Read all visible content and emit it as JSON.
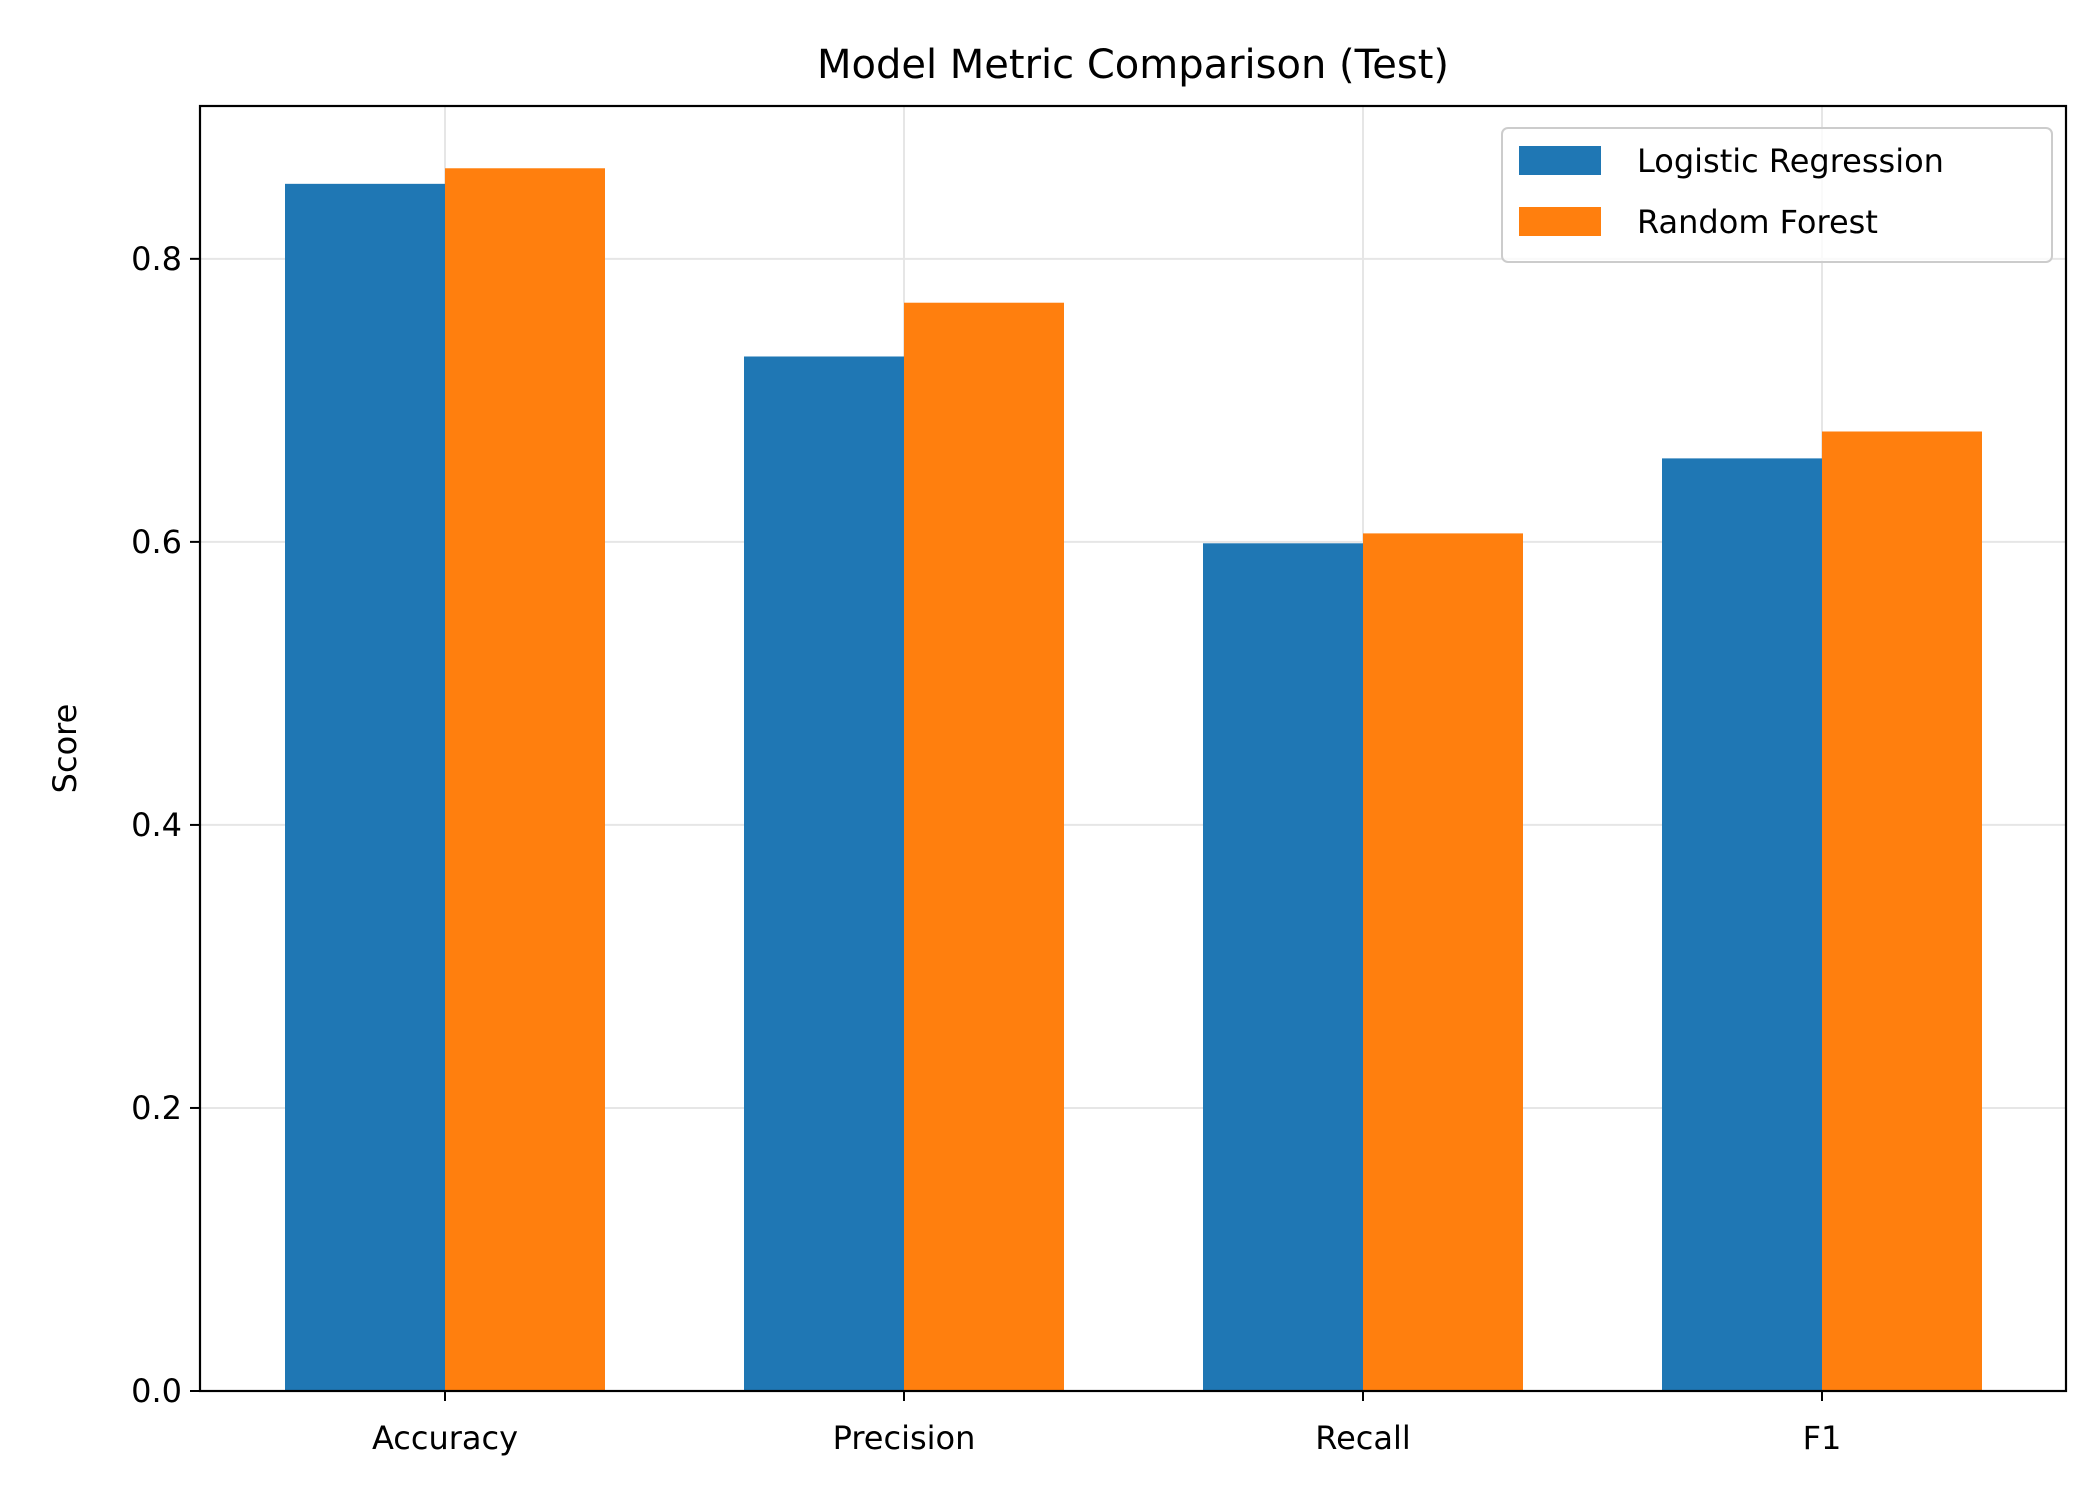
{
  "chart_data": {
    "type": "bar",
    "title": "Model Metric Comparison (Test)",
    "xlabel": "",
    "ylabel": "Score",
    "categories": [
      "Accuracy",
      "Precision",
      "Recall",
      "F1"
    ],
    "series": [
      {
        "name": "Logistic Regression",
        "color": "#1f77b4",
        "values": [
          0.853,
          0.731,
          0.599,
          0.659
        ]
      },
      {
        "name": "Random Forest",
        "color": "#ff7f0e",
        "values": [
          0.864,
          0.769,
          0.606,
          0.678
        ]
      }
    ],
    "ylim": [
      0,
      0.908
    ],
    "yticks": [
      0.0,
      0.2,
      0.4,
      0.6,
      0.8
    ],
    "ytick_labels": [
      "0.0",
      "0.2",
      "0.4",
      "0.6",
      "0.8"
    ],
    "grid": true,
    "legend_position": "top-right"
  }
}
